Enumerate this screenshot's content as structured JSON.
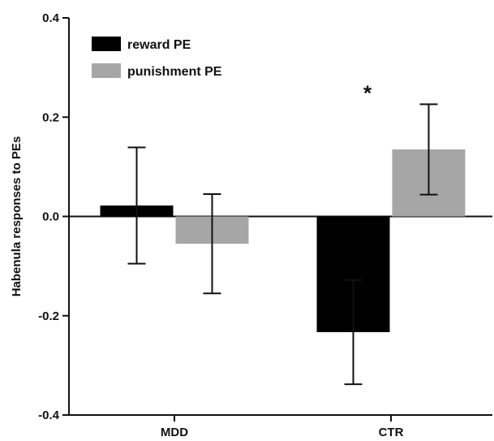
{
  "chart_data": {
    "type": "bar",
    "categories": [
      "MDD",
      "CTR"
    ],
    "series": [
      {
        "name": "reward PE",
        "color": "#000000",
        "values": [
          0.022,
          -0.233
        ],
        "error": [
          0.117,
          0.105
        ]
      },
      {
        "name": "punishment PE",
        "color": "#a6a6a6",
        "values": [
          -0.055,
          0.135
        ],
        "error": [
          0.1,
          0.091
        ]
      }
    ],
    "ylabel": "Habenula responses to PEs",
    "xlabel": "",
    "ylim": [
      -0.4,
      0.4
    ],
    "yticks": [
      -0.4,
      -0.2,
      0.0,
      0.2,
      0.4
    ],
    "ytick_labels": [
      "-0.4",
      "-0.2",
      "0.0",
      "0.2",
      "0.4"
    ],
    "legend": "top-left",
    "grid": false,
    "annotations": [
      {
        "text": "*",
        "category": "CTR",
        "y": 0.25
      }
    ]
  }
}
